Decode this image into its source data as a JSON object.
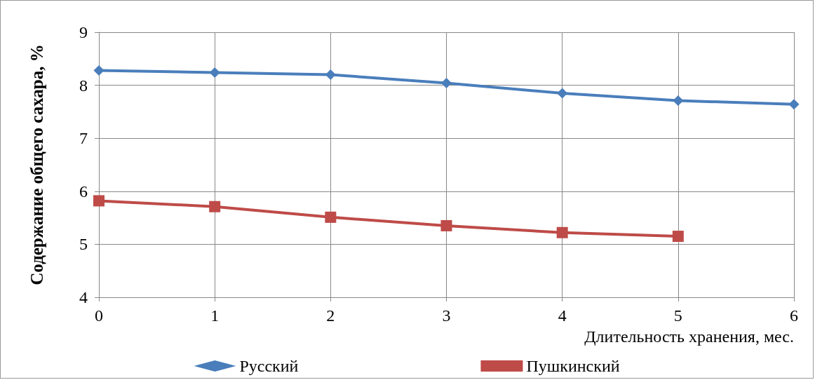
{
  "chart_data": {
    "type": "line",
    "xlabel": "Длительность хранения, мес.",
    "ylabel": "Содержание общего сахара, %",
    "x": [
      0,
      1,
      2,
      3,
      4,
      5,
      6
    ],
    "series": [
      {
        "name": "Русский",
        "color": "#4a7ebb",
        "marker": "diamond",
        "values": [
          8.28,
          8.24,
          8.2,
          8.04,
          7.85,
          7.71,
          7.64
        ]
      },
      {
        "name": "Пушкинский",
        "color": "#be4b48",
        "marker": "square",
        "values": [
          5.82,
          5.71,
          5.51,
          5.35,
          5.22,
          5.15,
          null
        ]
      }
    ],
    "xlim": [
      0,
      6
    ],
    "xticks": [
      0,
      1,
      2,
      3,
      4,
      5,
      6
    ],
    "ylim": [
      4,
      9
    ],
    "yticks": [
      4,
      5,
      6,
      7,
      8,
      9
    ],
    "grid": true,
    "legend": "bottom"
  }
}
